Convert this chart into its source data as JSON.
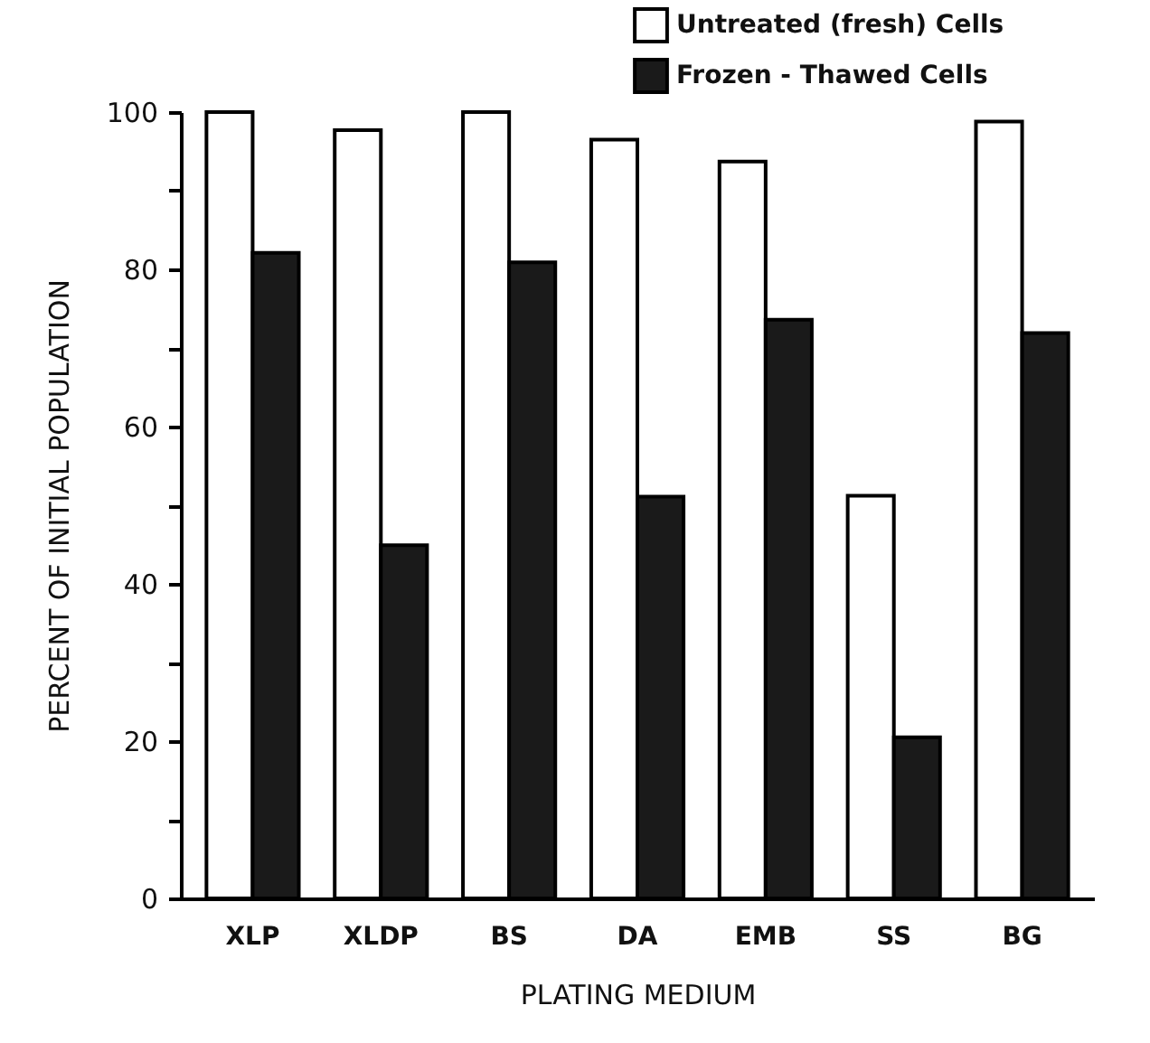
{
  "chart_data": {
    "type": "bar",
    "xlabel": "PLATING MEDIUM",
    "ylabel": "PERCENT OF INITIAL POPULATION",
    "categories": [
      "XLP",
      "XLDP",
      "BS",
      "DA",
      "EMB",
      "SS",
      "BG"
    ],
    "series": [
      {
        "name": "Untreated (fresh) Cells",
        "color": "#ffffff",
        "values": [
          100,
          97.7,
          100,
          96.5,
          93.7,
          51.2,
          98.8
        ]
      },
      {
        "name": "Frozen - Thawed Cells",
        "color": "#1a1a1a",
        "values": [
          82.1,
          44.9,
          80.9,
          51.1,
          73.6,
          20.5,
          71.9
        ]
      }
    ],
    "ylim": [
      0,
      100
    ],
    "yticks": [
      0,
      {
        "value": 10,
        "label": null
      },
      20,
      {
        "value": 30,
        "label": null
      },
      40,
      {
        "value": 50,
        "label": null
      },
      60,
      {
        "value": 70,
        "label": null
      },
      80,
      {
        "value": 90,
        "label": null
      },
      100
    ],
    "grid": false,
    "legend": "top right"
  }
}
